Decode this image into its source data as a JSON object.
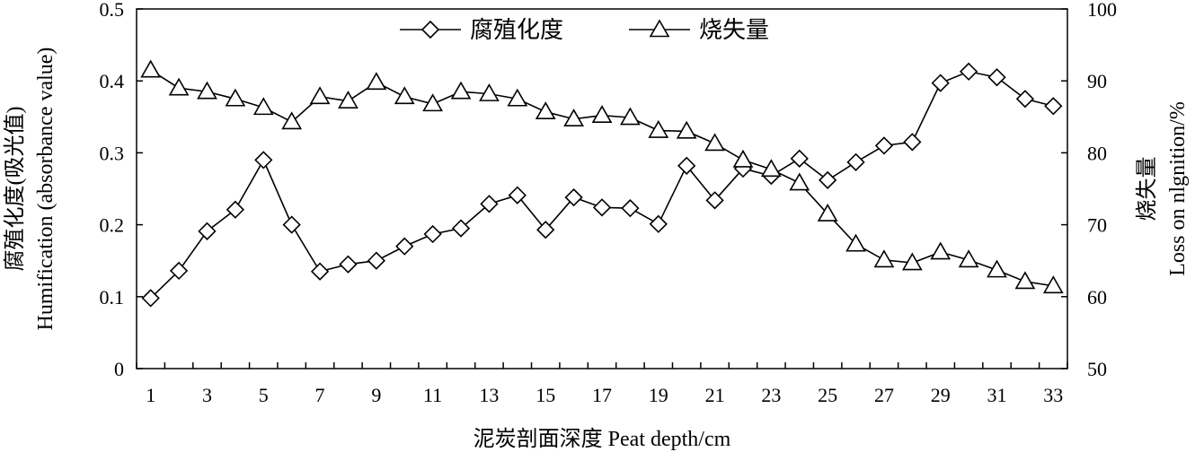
{
  "chart_data": {
    "type": "line",
    "x": [
      1,
      2,
      3,
      4,
      5,
      6,
      7,
      8,
      9,
      10,
      11,
      12,
      13,
      14,
      15,
      16,
      17,
      18,
      19,
      20,
      21,
      22,
      23,
      24,
      25,
      26,
      27,
      28,
      29,
      30,
      31,
      32,
      33
    ],
    "x_tick_labels": [
      "1",
      "3",
      "5",
      "7",
      "9",
      "11",
      "13",
      "15",
      "17",
      "19",
      "21",
      "23",
      "25",
      "27",
      "29",
      "31",
      "33"
    ],
    "xlabel": "泥炭剖面深度 Peat depth/cm",
    "ylabel_left_line1": "腐殖化度(吸光值)",
    "ylabel_left_line2": "Humification (absorbance value)",
    "ylabel_right_line1": "烧失量",
    "ylabel_right_line2": "Loss on nlgnition/%",
    "ylim_left": [
      0,
      0.5
    ],
    "ylim_right": [
      50,
      100
    ],
    "y_left_tick_labels": [
      "0",
      "0.1",
      "0.2",
      "0.3",
      "0.4",
      "0.5"
    ],
    "y_right_tick_labels": [
      "50",
      "60",
      "70",
      "80",
      "90",
      "100"
    ],
    "grid": false,
    "legend_position": "top-center",
    "series": [
      {
        "name": "腐殖化度",
        "axis": "left",
        "marker": "diamond",
        "values": [
          0.098,
          0.136,
          0.191,
          0.221,
          0.29,
          0.2,
          0.135,
          0.145,
          0.15,
          0.17,
          0.187,
          0.195,
          0.229,
          0.241,
          0.193,
          0.238,
          0.224,
          0.223,
          0.201,
          0.282,
          0.234,
          0.278,
          0.268,
          0.292,
          0.262,
          0.287,
          0.31,
          0.315,
          0.397,
          0.413,
          0.405,
          0.375,
          0.365
        ]
      },
      {
        "name": "烧失量",
        "axis": "right",
        "marker": "triangle",
        "values": [
          91.5,
          89.0,
          88.5,
          87.5,
          86.3,
          84.3,
          87.8,
          87.2,
          89.8,
          87.8,
          86.8,
          88.5,
          88.2,
          87.5,
          85.7,
          84.7,
          85.2,
          84.9,
          83.1,
          83.0,
          81.3,
          79.0,
          77.7,
          75.8,
          71.5,
          67.3,
          65.1,
          64.7,
          66.2,
          65.1,
          63.7,
          62.1,
          61.5
        ]
      }
    ]
  }
}
